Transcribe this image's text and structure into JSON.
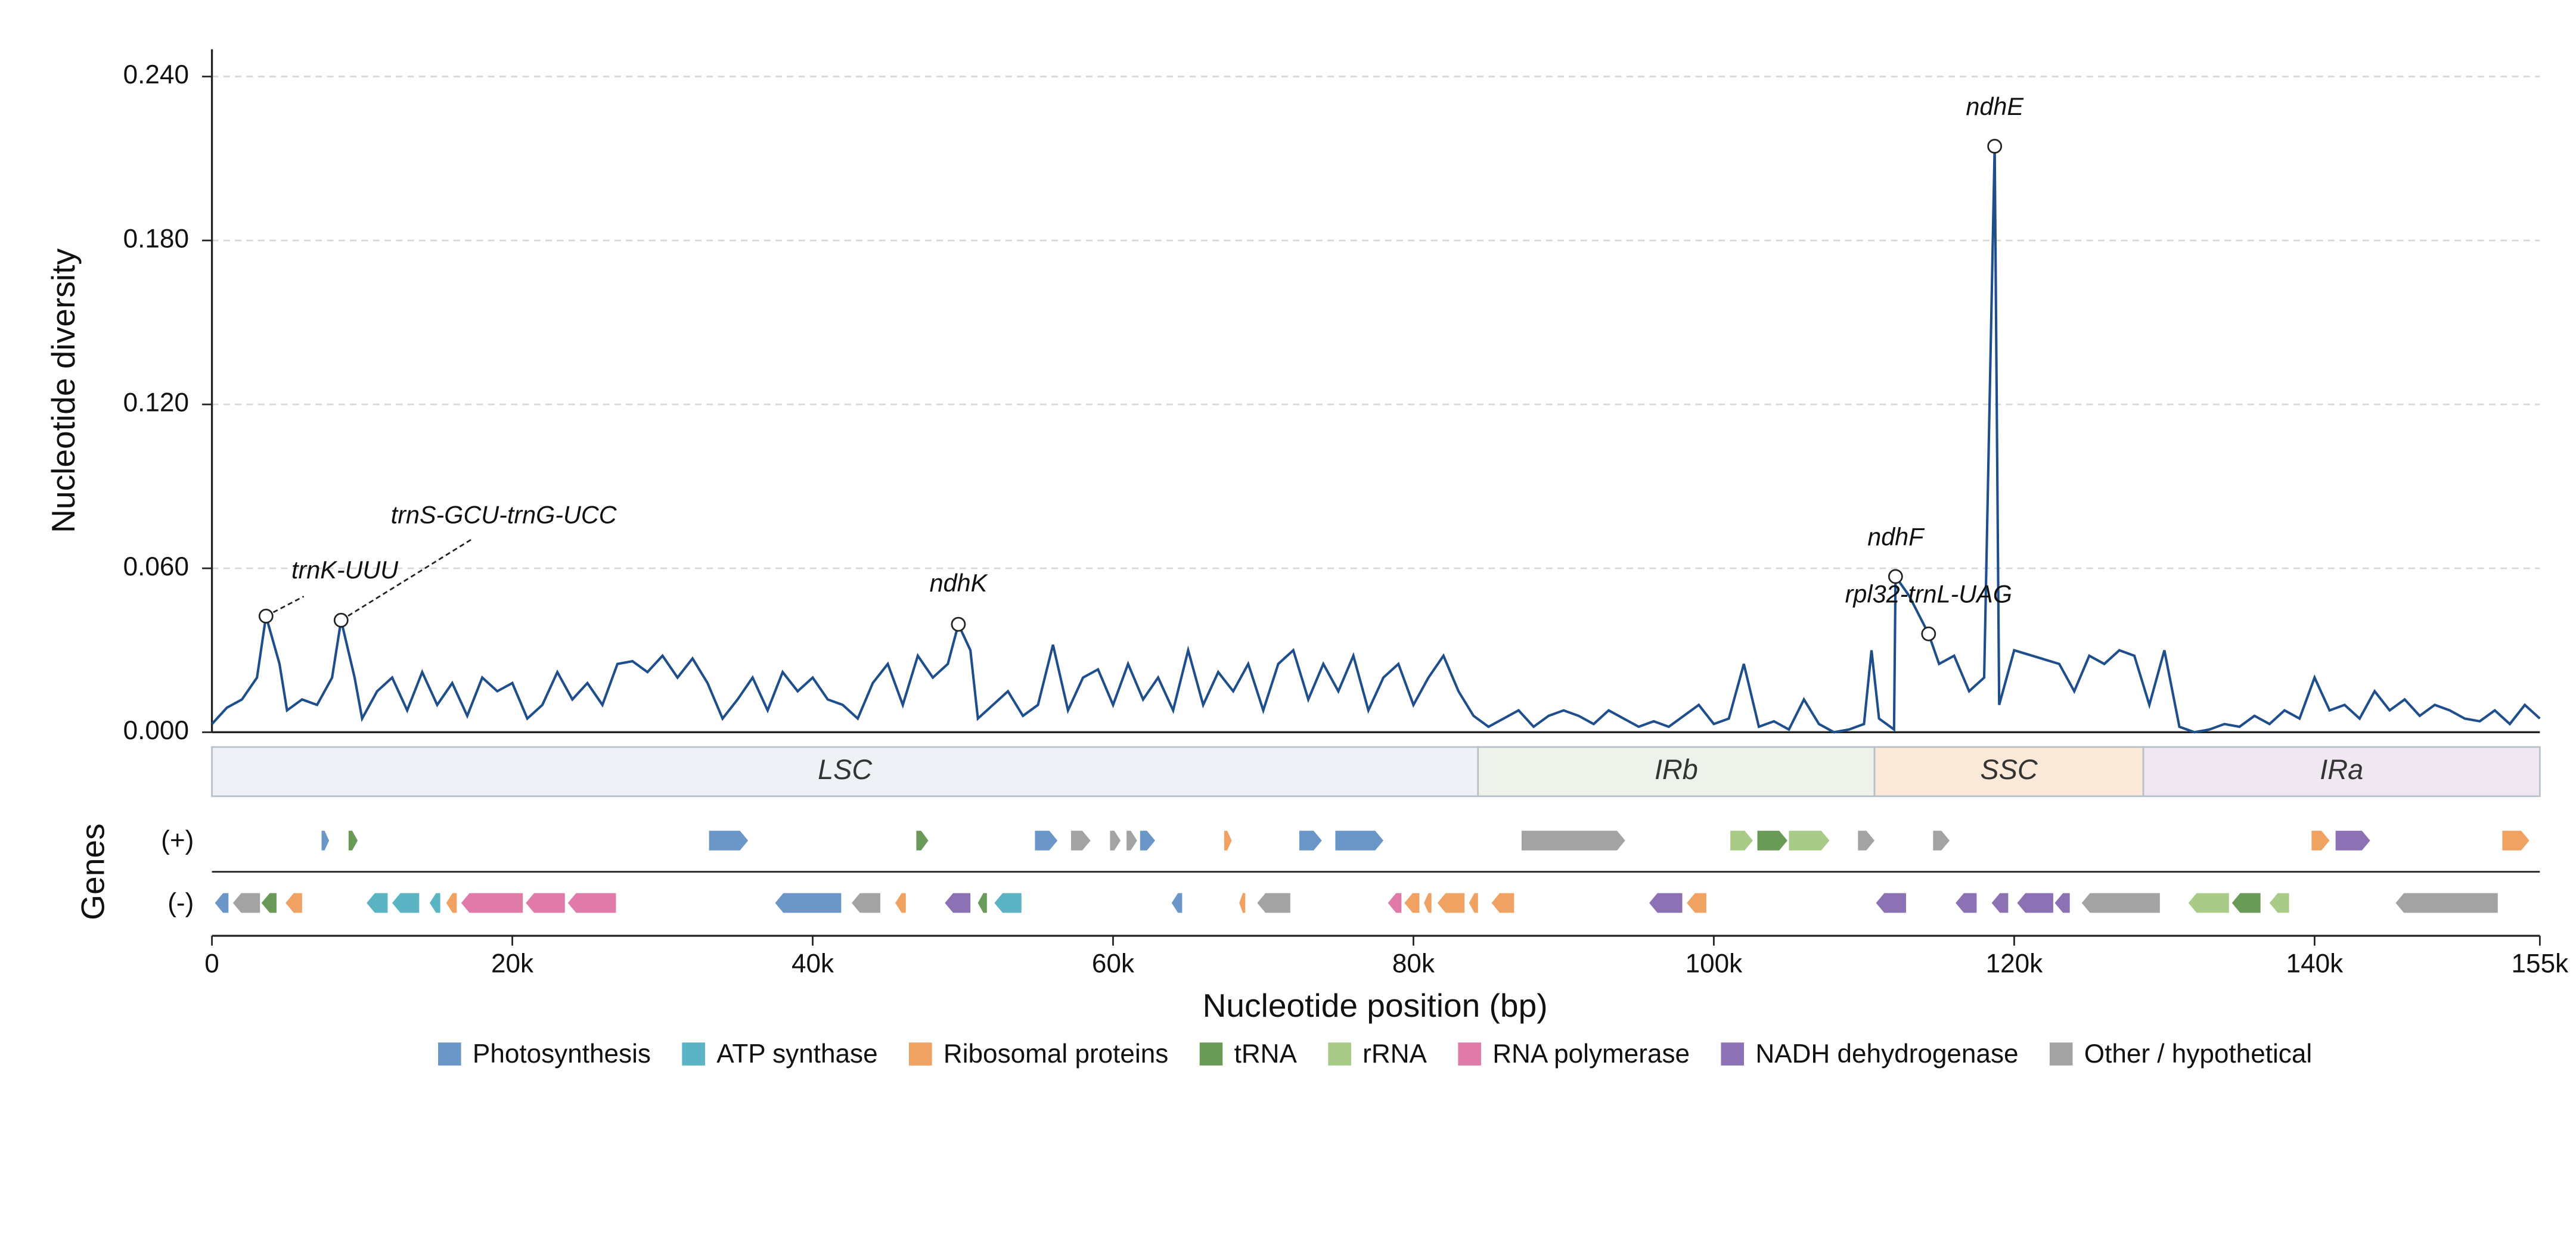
{
  "chart_data": {
    "type": "line",
    "y_label": "Nucleotide diversity",
    "x_label": "Nucleotide position (bp)",
    "genes_label": "Genes",
    "gene_tracks": [
      "(+)",
      "(-)"
    ],
    "line_color": "#1f4e8c",
    "grid": true,
    "xlim": [
      0,
      155000
    ],
    "ylim": [
      0,
      0.25
    ],
    "xticks": [
      0,
      {
        "value": 20000,
        "label": "20k"
      },
      {
        "value": 40000,
        "label": "40k"
      },
      {
        "value": 60000,
        "label": "60k"
      },
      {
        "value": 80000,
        "label": "80k"
      },
      {
        "value": 100000,
        "label": "100k"
      },
      {
        "value": 120000,
        "label": "120k"
      },
      {
        "value": 140000,
        "label": "140k"
      },
      {
        "value": 155000,
        "label": "155k"
      }
    ],
    "yticks": [
      {
        "value": 0,
        "label": "0.000"
      },
      {
        "value": 0.06,
        "label": "0.060"
      },
      {
        "value": 0.12,
        "label": "0.120"
      },
      {
        "value": 0.18,
        "label": "0.180"
      },
      {
        "value": 0.24,
        "label": "0.240"
      }
    ],
    "x": [
      0,
      1000,
      2000,
      3000,
      3600,
      4500,
      5000,
      6000,
      7000,
      8000,
      8600,
      9500,
      10000,
      11000,
      12000,
      13000,
      14000,
      15000,
      16000,
      17000,
      18000,
      19000,
      20000,
      21000,
      22000,
      23000,
      24000,
      25000,
      26000,
      27000,
      28000,
      29000,
      30000,
      31000,
      32000,
      33000,
      34000,
      35000,
      36000,
      37000,
      38000,
      39000,
      40000,
      41000,
      42000,
      43000,
      44000,
      45000,
      46000,
      47000,
      48000,
      49000,
      49700,
      50500,
      51000,
      52000,
      53000,
      54000,
      55000,
      56000,
      57000,
      58000,
      59000,
      60000,
      61000,
      62000,
      63000,
      64000,
      65000,
      66000,
      67000,
      68000,
      69000,
      70000,
      71000,
      72000,
      73000,
      74000,
      75000,
      76000,
      77000,
      78000,
      79000,
      80000,
      81000,
      82000,
      83000,
      84000,
      85000,
      86000,
      87000,
      88000,
      89000,
      90000,
      91000,
      92000,
      93000,
      94000,
      95000,
      96000,
      97000,
      98000,
      99000,
      100000,
      101000,
      102000,
      103000,
      104000,
      105000,
      106000,
      107000,
      108000,
      109000,
      110000,
      110500,
      111000,
      112000,
      112100,
      113000,
      114300,
      115000,
      116000,
      117000,
      118000,
      118700,
      119000,
      120000,
      123000,
      124000,
      125000,
      126000,
      127000,
      128000,
      129000,
      130000,
      131000,
      132000,
      133000,
      134000,
      135000,
      136000,
      137000,
      138000,
      139000,
      140000,
      141000,
      142000,
      143000,
      144000,
      145000,
      146000,
      147000,
      148000,
      149000,
      150000,
      151000,
      152000,
      153000,
      154000,
      155000
    ],
    "values": [
      0.003,
      0.009,
      0.012,
      0.02,
      0.0425,
      0.025,
      0.008,
      0.012,
      0.01,
      0.02,
      0.041,
      0.02,
      0.005,
      0.015,
      0.02,
      0.008,
      0.022,
      0.01,
      0.018,
      0.006,
      0.02,
      0.015,
      0.018,
      0.005,
      0.01,
      0.022,
      0.012,
      0.018,
      0.01,
      0.025,
      0.026,
      0.022,
      0.028,
      0.02,
      0.027,
      0.018,
      0.005,
      0.012,
      0.02,
      0.008,
      0.022,
      0.015,
      0.02,
      0.012,
      0.01,
      0.005,
      0.018,
      0.025,
      0.01,
      0.028,
      0.02,
      0.025,
      0.0395,
      0.03,
      0.005,
      0.01,
      0.015,
      0.006,
      0.01,
      0.032,
      0.008,
      0.02,
      0.023,
      0.01,
      0.025,
      0.012,
      0.02,
      0.008,
      0.03,
      0.01,
      0.022,
      0.015,
      0.025,
      0.008,
      0.025,
      0.03,
      0.012,
      0.025,
      0.015,
      0.028,
      0.008,
      0.02,
      0.025,
      0.01,
      0.02,
      0.028,
      0.015,
      0.006,
      0.002,
      0.005,
      0.008,
      0.002,
      0.006,
      0.008,
      0.006,
      0.003,
      0.008,
      0.005,
      0.002,
      0.004,
      0.002,
      0.006,
      0.01,
      0.003,
      0.005,
      0.025,
      0.002,
      0.004,
      0.001,
      0.012,
      0.003,
      0.0,
      0.001,
      0.003,
      0.03,
      0.005,
      0.001,
      0.057,
      0.05,
      0.036,
      0.025,
      0.028,
      0.015,
      0.02,
      0.2145,
      0.01,
      0.03,
      0.025,
      0.015,
      0.028,
      0.025,
      0.03,
      0.028,
      0.01,
      0.03,
      0.002,
      0.0,
      0.001,
      0.003,
      0.002,
      0.006,
      0.003,
      0.008,
      0.005,
      0.02,
      0.008,
      0.01,
      0.005,
      0.015,
      0.008,
      0.012,
      0.006,
      0.01,
      0.008,
      0.005,
      0.004,
      0.008,
      0.003,
      0.01,
      0.005
    ],
    "annotations": [
      {
        "text": "trnK-UUU",
        "x": 3600,
        "y": 0.0425
      },
      {
        "text": "trnS-GCU-trnG-UCC",
        "x": 8600,
        "y": 0.041
      },
      {
        "text": "ndhK",
        "x": 49700,
        "y": 0.0395
      },
      {
        "text": "ndhF",
        "x": 112100,
        "y": 0.057
      },
      {
        "text": "rpl32-trnL-UAG",
        "x": 114300,
        "y": 0.036
      },
      {
        "text": "ndhE",
        "x": 118700,
        "y": 0.2145
      }
    ],
    "regions": [
      {
        "name": "LSC",
        "start": 0,
        "end": 84300,
        "color": "#eef2f6"
      },
      {
        "name": "IRb",
        "start": 84300,
        "end": 110700,
        "color": "#edf3ea"
      },
      {
        "name": "SSC",
        "start": 110700,
        "end": 128600,
        "color": "#fae8d8"
      },
      {
        "name": "IRa",
        "start": 128600,
        "end": 155000,
        "color": "#f1e7f2"
      }
    ],
    "gene_groups": [
      {
        "name": "Photosynthesis",
        "color": "#6a96c8",
        "plus_strand": [
          [
            7300,
            7800
          ],
          [
            33100,
            35700
          ],
          [
            54800,
            56300
          ],
          [
            61800,
            62800
          ],
          [
            72400,
            73900
          ],
          [
            74800,
            78000
          ]
        ],
        "minus_strand": [
          [
            200,
            1100
          ],
          [
            37500,
            41900
          ],
          [
            63900,
            64600
          ]
        ]
      },
      {
        "name": "ATP synthase",
        "color": "#5ab4c4",
        "plus_strand": [],
        "minus_strand": [
          [
            10300,
            11700
          ],
          [
            12000,
            13800
          ],
          [
            14500,
            15200
          ],
          [
            52100,
            53900
          ]
        ]
      },
      {
        "name": "Ribosomal proteins",
        "color": "#f0a262",
        "plus_strand": [
          [
            67400,
            67900
          ],
          [
            139800,
            141000
          ],
          [
            152500,
            154300
          ]
        ],
        "minus_strand": [
          [
            4900,
            6000
          ],
          [
            15600,
            16300
          ],
          [
            45500,
            46200
          ],
          [
            68400,
            68800
          ],
          [
            79400,
            80400
          ],
          [
            80700,
            81200
          ],
          [
            81600,
            83400
          ],
          [
            83700,
            84300
          ],
          [
            85200,
            86700
          ],
          [
            98200,
            99500
          ]
        ]
      },
      {
        "name": "tRNA",
        "color": "#6a9a58",
        "plus_strand": [
          [
            9100,
            9700
          ],
          [
            46900,
            47700
          ],
          [
            102900,
            104900
          ]
        ],
        "minus_strand": [
          [
            3300,
            4300
          ],
          [
            51000,
            51600
          ],
          [
            134500,
            136400
          ]
        ]
      },
      {
        "name": "rRNA",
        "color": "#a8cc88",
        "plus_strand": [
          [
            101100,
            102600
          ],
          [
            105000,
            107700
          ]
        ],
        "minus_strand": [
          [
            131600,
            134300
          ],
          [
            137000,
            138300
          ]
        ]
      },
      {
        "name": "RNA polymerase",
        "color": "#e07aa8",
        "plus_strand": [],
        "minus_strand": [
          [
            16600,
            20700
          ],
          [
            20900,
            23500
          ],
          [
            23700,
            26900
          ],
          [
            78300,
            79200
          ]
        ]
      },
      {
        "name": "NADH dehydrogenase",
        "color": "#8c72b4",
        "plus_strand": [
          [
            141400,
            143700
          ]
        ],
        "minus_strand": [
          [
            48800,
            50500
          ],
          [
            95700,
            97900
          ],
          [
            110800,
            112800
          ],
          [
            116100,
            117500
          ],
          [
            118500,
            119600
          ],
          [
            120200,
            122600
          ],
          [
            122700,
            123700
          ]
        ]
      },
      {
        "name": "Other / hypothetical",
        "color": "#a3a3a3",
        "plus_strand": [
          [
            57200,
            58500
          ],
          [
            59800,
            60500
          ],
          [
            60900,
            61600
          ],
          [
            87200,
            94100
          ],
          [
            109600,
            110700
          ],
          [
            114600,
            115700
          ]
        ],
        "minus_strand": [
          [
            1400,
            3200
          ],
          [
            42600,
            44500
          ],
          [
            69600,
            71800
          ],
          [
            124500,
            129700
          ],
          [
            145400,
            152200
          ]
        ]
      }
    ]
  }
}
